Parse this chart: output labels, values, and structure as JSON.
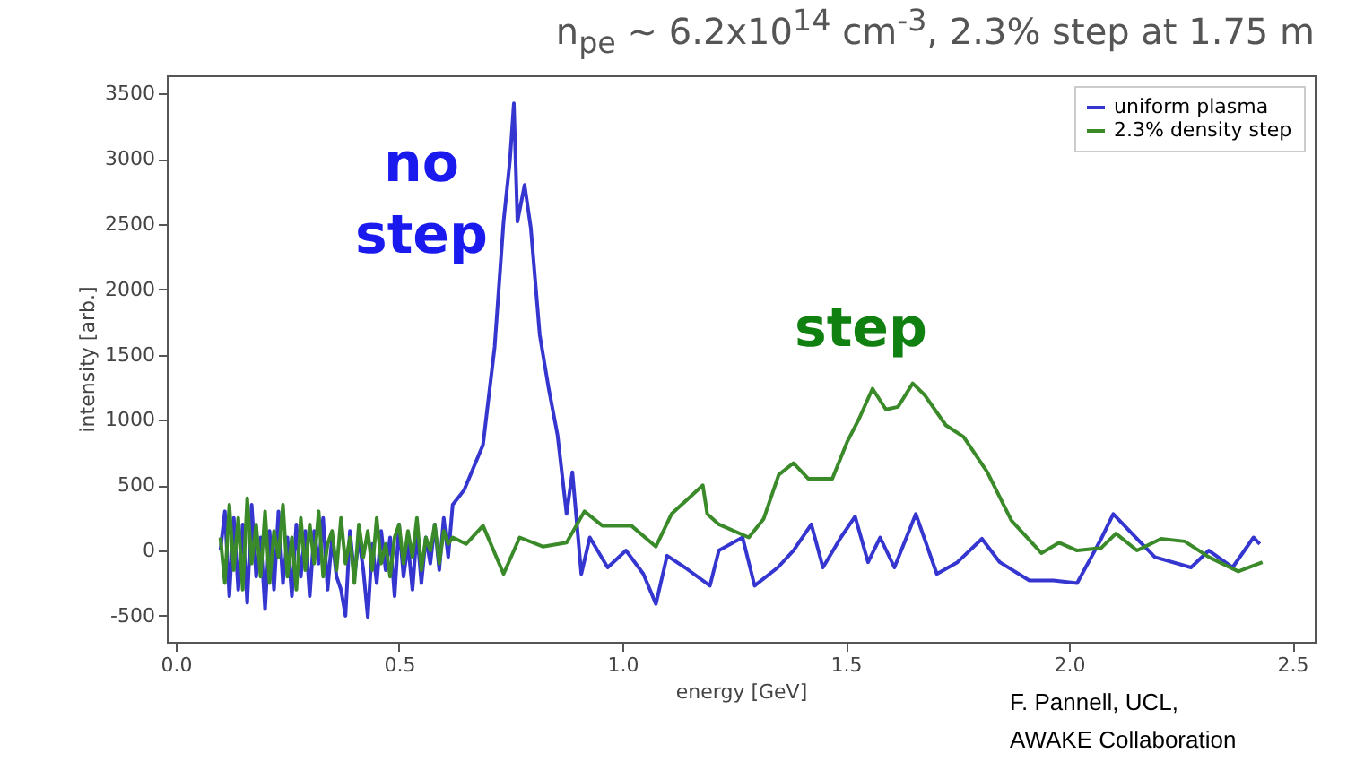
{
  "chart_data": {
    "type": "line",
    "title": "n$_{pe}$ ~ 6.2x10$^{14}$ cm$^{-3}$, 2.3% step at 1.75 m",
    "xlabel": "energy [GeV]",
    "ylabel": "intensity [arb.]",
    "annotations": [
      "no step",
      "step",
      "F. Pannell, UCL,\nAWAKE Collaboration"
    ],
    "xlim": [
      -0.02,
      2.55
    ],
    "ylim": [
      -700,
      3640
    ],
    "xticks": [
      {
        "value": 0,
        "label": "0.0"
      },
      {
        "value": 0.5,
        "label": "0.5"
      },
      {
        "value": 1,
        "label": "1.0"
      },
      {
        "value": 1.5,
        "label": "1.5"
      },
      {
        "value": 2,
        "label": "2.0"
      },
      {
        "value": 2.5,
        "label": "2.5"
      }
    ],
    "yticks": [
      -500,
      0,
      500,
      1000,
      1500,
      2000,
      2500,
      3000,
      3500
    ],
    "grid": false,
    "legend": "top right",
    "series": [
      {
        "name": "uniform plasma",
        "color": "#3535d0",
        "x": [
          0.1,
          0.11,
          0.12,
          0.13,
          0.14,
          0.15,
          0.16,
          0.17,
          0.18,
          0.19,
          0.2,
          0.21,
          0.22,
          0.23,
          0.24,
          0.25,
          0.26,
          0.27,
          0.28,
          0.29,
          0.3,
          0.31,
          0.32,
          0.33,
          0.34,
          0.35,
          0.36,
          0.37,
          0.38,
          0.39,
          0.4,
          0.41,
          0.42,
          0.43,
          0.44,
          0.45,
          0.46,
          0.47,
          0.48,
          0.49,
          0.5,
          0.51,
          0.52,
          0.53,
          0.54,
          0.55,
          0.56,
          0.57,
          0.58,
          0.59,
          0.6,
          0.61,
          0.62,
          0.646,
          0.688,
          0.714,
          0.734,
          0.748,
          0.757,
          0.765,
          0.781,
          0.795,
          0.815,
          0.835,
          0.855,
          0.875,
          0.888,
          0.908,
          0.927,
          0.967,
          1.008,
          1.047,
          1.075,
          1.1,
          1.14,
          1.196,
          1.216,
          1.269,
          1.296,
          1.348,
          1.383,
          1.423,
          1.449,
          1.489,
          1.521,
          1.55,
          1.577,
          1.609,
          1.657,
          1.704,
          1.75,
          1.805,
          1.845,
          1.911,
          1.965,
          2.018,
          2.072,
          2.099,
          2.152,
          2.192,
          2.273,
          2.313,
          2.366,
          2.413,
          2.427
        ],
        "values": [
          0,
          300,
          -350,
          250,
          -300,
          200,
          -400,
          350,
          -200,
          100,
          -450,
          150,
          -300,
          300,
          -250,
          100,
          -350,
          200,
          -200,
          150,
          -350,
          150,
          -100,
          250,
          -300,
          100,
          -200,
          -300,
          -500,
          150,
          -200,
          100,
          -150,
          -510,
          50,
          -250,
          150,
          -150,
          100,
          -350,
          200,
          -200,
          50,
          -300,
          150,
          -250,
          100,
          -100,
          200,
          -150,
          250,
          -50,
          350,
          465,
          810,
          1560,
          2520,
          2980,
          3425,
          2520,
          2800,
          2470,
          1650,
          1240,
          880,
          280,
          600,
          -180,
          100,
          -130,
          0,
          -180,
          -410,
          -40,
          -130,
          -270,
          0,
          100,
          -270,
          -130,
          0,
          200,
          -130,
          100,
          260,
          -90,
          100,
          -130,
          280,
          -180,
          -90,
          90,
          -90,
          -230,
          -230,
          -250,
          90,
          280,
          90,
          -50,
          -130,
          0,
          -130,
          100,
          50
        ]
      },
      {
        "name": "2.3% density step",
        "color": "#3a8a2a",
        "x": [
          0.1,
          0.11,
          0.12,
          0.13,
          0.14,
          0.15,
          0.16,
          0.17,
          0.18,
          0.19,
          0.2,
          0.21,
          0.22,
          0.23,
          0.24,
          0.25,
          0.26,
          0.27,
          0.28,
          0.29,
          0.3,
          0.31,
          0.32,
          0.33,
          0.34,
          0.35,
          0.36,
          0.37,
          0.38,
          0.39,
          0.4,
          0.41,
          0.42,
          0.43,
          0.44,
          0.45,
          0.46,
          0.47,
          0.48,
          0.49,
          0.5,
          0.51,
          0.52,
          0.53,
          0.54,
          0.55,
          0.56,
          0.57,
          0.58,
          0.59,
          0.6,
          0.61,
          0.62,
          0.65,
          0.688,
          0.734,
          0.77,
          0.822,
          0.875,
          0.915,
          0.955,
          1.02,
          1.075,
          1.11,
          1.18,
          1.19,
          1.216,
          1.283,
          1.316,
          1.35,
          1.383,
          1.416,
          1.47,
          1.503,
          1.53,
          1.56,
          1.59,
          1.617,
          1.65,
          1.677,
          1.724,
          1.764,
          1.817,
          1.871,
          1.938,
          1.978,
          2.018,
          2.072,
          2.105,
          2.152,
          2.206,
          2.259,
          2.313,
          2.379,
          2.433
        ],
        "values": [
          100,
          -250,
          350,
          -150,
          250,
          -300,
          400,
          -100,
          200,
          -200,
          300,
          -250,
          150,
          -50,
          350,
          -200,
          100,
          -300,
          250,
          -150,
          200,
          -100,
          300,
          -200,
          50,
          150,
          -150,
          250,
          -100,
          100,
          -250,
          200,
          -50,
          150,
          -150,
          250,
          -100,
          50,
          -200,
          100,
          200,
          -100,
          150,
          -50,
          250,
          -150,
          100,
          0,
          200,
          -100,
          150,
          50,
          100,
          50,
          190,
          -180,
          100,
          30,
          60,
          300,
          190,
          190,
          30,
          280,
          500,
          280,
          200,
          100,
          240,
          580,
          670,
          550,
          550,
          830,
          1010,
          1240,
          1080,
          1100,
          1280,
          1190,
          960,
          870,
          600,
          230,
          -20,
          60,
          0,
          20,
          130,
          0,
          90,
          70,
          -50,
          -160,
          -90
        ]
      }
    ]
  }
}
